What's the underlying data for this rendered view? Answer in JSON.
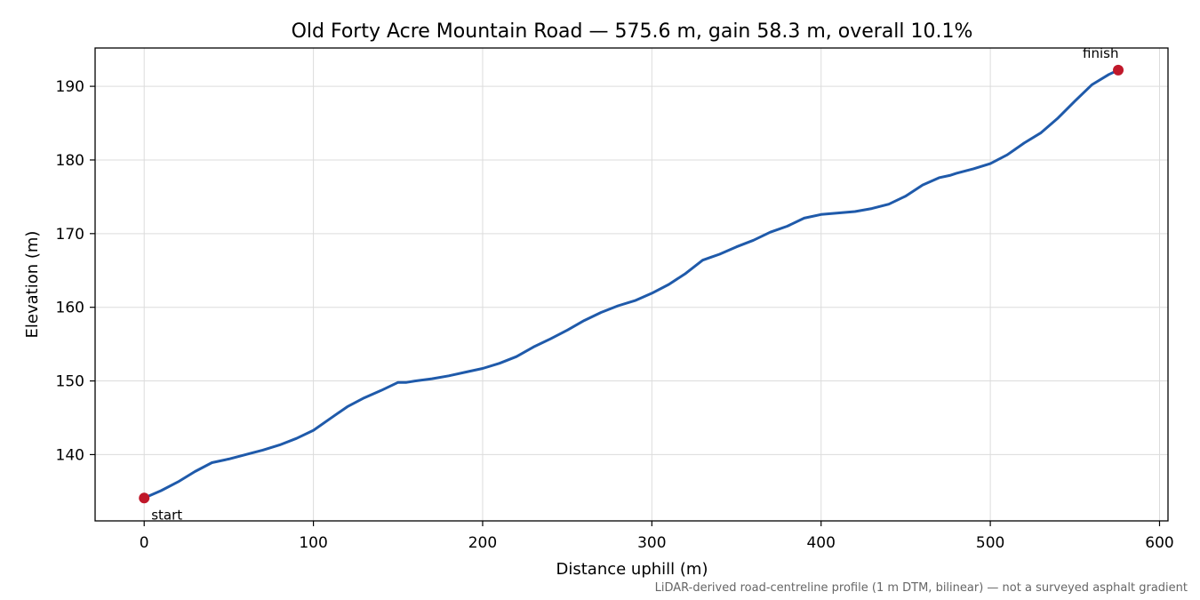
{
  "chart_data": {
    "type": "line",
    "title": "Old Forty Acre Mountain Road — 575.6 m, gain 58.3 m, overall 10.1%",
    "xlabel": "Distance uphill (m)",
    "ylabel": "Elevation (m)",
    "footnote": "LiDAR-derived road-centreline profile (1 m DTM, bilinear) — not a surveyed asphalt gradient",
    "xlim": [
      -29,
      605
    ],
    "ylim": [
      131,
      195.2
    ],
    "xticks": [
      0,
      100,
      200,
      300,
      400,
      500,
      600
    ],
    "yticks": [
      140,
      150,
      160,
      170,
      180,
      190
    ],
    "grid": true,
    "line_color": "#1f5aaa",
    "marker_color": "#c0182a",
    "series": [
      {
        "x": [
          0,
          10,
          20,
          30,
          40,
          50,
          60,
          70,
          80,
          90,
          100,
          110,
          120,
          130,
          140,
          150,
          155,
          160,
          170,
          180,
          190,
          200,
          210,
          220,
          230,
          240,
          250,
          260,
          270,
          280,
          290,
          300,
          310,
          320,
          330,
          335,
          340,
          350,
          360,
          370,
          380,
          390,
          400,
          410,
          420,
          430,
          440,
          450,
          460,
          470,
          476,
          480,
          490,
          500,
          510,
          520,
          530,
          540,
          550,
          560,
          570,
          575.6
        ],
        "y": [
          134.1,
          135.1,
          136.3,
          137.7,
          138.9,
          139.4,
          140.0,
          140.6,
          141.3,
          142.2,
          143.3,
          144.9,
          146.5,
          147.7,
          148.7,
          149.8,
          149.8,
          150.0,
          150.3,
          150.7,
          151.2,
          151.7,
          152.4,
          153.3,
          154.6,
          155.7,
          156.9,
          158.2,
          159.3,
          160.2,
          160.9,
          161.9,
          163.1,
          164.6,
          166.4,
          166.8,
          167.2,
          168.2,
          169.1,
          170.2,
          171.0,
          172.1,
          172.6,
          172.8,
          173.0,
          173.4,
          174.0,
          175.1,
          176.6,
          177.6,
          177.9,
          178.2,
          178.8,
          179.5,
          180.7,
          182.3,
          183.7,
          185.7,
          188.0,
          190.2,
          191.6,
          192.2
        ]
      }
    ],
    "annotations": [
      {
        "label": "start",
        "x": 0,
        "y": 134.1
      },
      {
        "label": "finish",
        "x": 575.6,
        "y": 192.2
      }
    ]
  }
}
